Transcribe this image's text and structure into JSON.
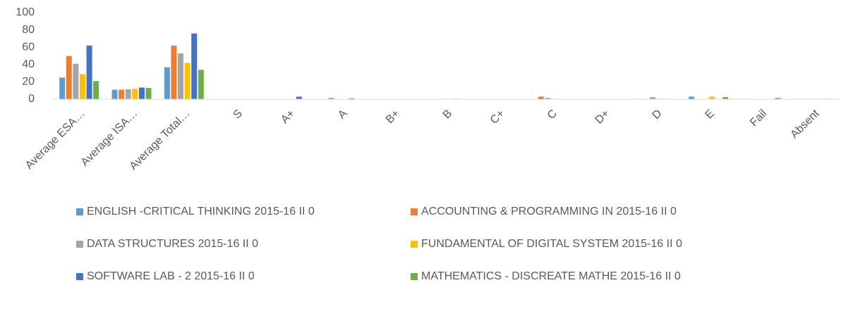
{
  "chart_data": {
    "type": "bar",
    "categories": [
      "Average ESA…",
      "Average ISA…",
      "Average Total…",
      "S",
      "A+",
      "A",
      "B+",
      "B",
      "C+",
      "C",
      "D+",
      "D",
      "E",
      "Fail",
      "Absent"
    ],
    "series": [
      {
        "name": "ENGLISH -CRITICAL THINKING  2015-16 II 0",
        "color": "#5b9bd5",
        "values": [
          25,
          11,
          37,
          0,
          0,
          0,
          0,
          0,
          0,
          0,
          0,
          0.5,
          3,
          0.5,
          0.5
        ]
      },
      {
        "name": "ACCOUNTING & PROGRAMMING IN 2015-16 II 0",
        "color": "#ed7d31",
        "values": [
          50,
          11,
          62,
          0,
          0,
          1.5,
          0,
          0,
          0,
          3,
          0,
          0,
          0,
          0,
          0.5
        ]
      },
      {
        "name": "DATA STRUCTURES 2015-16 II 0",
        "color": "#a5a5a5",
        "values": [
          41,
          11.5,
          53,
          0,
          0,
          0,
          0,
          0.5,
          0,
          1.5,
          0,
          2.5,
          0,
          0,
          0.5
        ]
      },
      {
        "name": "FUNDAMENTAL OF DIGITAL SYSTEM  2015-16 II 0",
        "color": "#ffc000",
        "values": [
          29,
          12,
          42,
          0,
          0,
          0,
          0,
          0,
          0,
          0.5,
          0,
          0.5,
          3,
          0,
          0.5
        ]
      },
      {
        "name": "SOFTWARE LAB - 2 2015-16 II 0",
        "color": "#4472c4",
        "values": [
          62,
          13.5,
          76,
          0,
          3,
          1,
          0,
          0.5,
          0,
          0,
          0,
          0.5,
          0,
          0,
          0.5
        ]
      },
      {
        "name": "MATHEMATICS - DISCREATE MATHE 2015-16 II 0",
        "color": "#70ad47",
        "values": [
          21,
          13,
          34,
          0,
          0,
          0,
          0,
          0,
          0,
          0,
          0,
          0,
          2.5,
          1.5,
          0.5
        ]
      }
    ],
    "ylim": [
      0,
      100
    ],
    "yticks": [
      0,
      20,
      40,
      60,
      80,
      100
    ],
    "grid": false
  }
}
